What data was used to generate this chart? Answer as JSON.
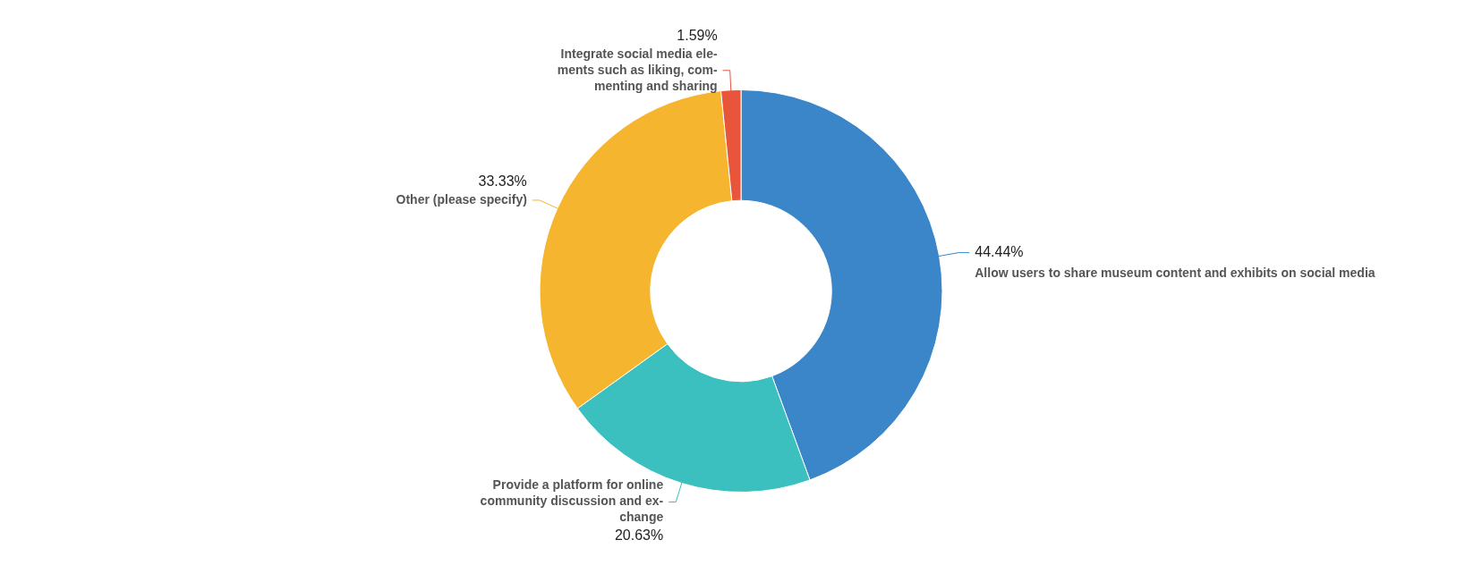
{
  "chart_data": {
    "type": "donut",
    "categories": [
      "Allow users to share museum content and exhibits on social media",
      "Provide a platform for online\ncommunity discussion and ex-\nchange",
      "Other (please specify)",
      "Integrate social media ele-\nments such as liking, com-\nmenting and sharing"
    ],
    "values": [
      44.44,
      20.63,
      33.33,
      1.59
    ],
    "colors": [
      "#3a86c8",
      "#3bbfbf",
      "#f5b52e",
      "#e8553a"
    ],
    "value_labels": [
      "44.44%",
      "20.63%",
      "33.33%",
      "1.59%"
    ]
  }
}
